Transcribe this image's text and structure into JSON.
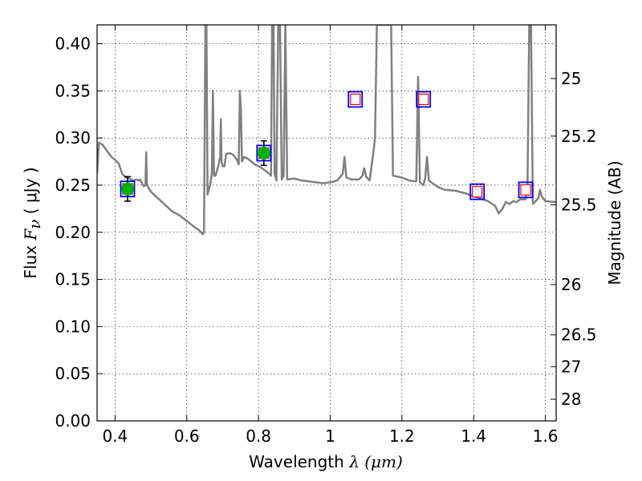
{
  "chart_data": {
    "type": "line",
    "title": "",
    "xlabel": {
      "text": "Wavelength",
      "symbol": "λ",
      "unit": "(μm)"
    },
    "ylabel": {
      "text": "Flux",
      "symbol": "F",
      "subscript": "ν",
      "unit": "( μJy )"
    },
    "y2label": "Magnitude (AB)",
    "xlim": [
      0.35,
      1.63
    ],
    "ylim": [
      0.0,
      0.42
    ],
    "grid": true,
    "legend": "none",
    "xticks": [
      {
        "v": 0.4,
        "label": "0.4"
      },
      {
        "v": 0.6,
        "label": "0.6"
      },
      {
        "v": 0.8,
        "label": "0.8"
      },
      {
        "v": 1.0,
        "label": "1"
      },
      {
        "v": 1.2,
        "label": "1.2"
      },
      {
        "v": 1.4,
        "label": "1.4"
      },
      {
        "v": 1.6,
        "label": "1.6"
      }
    ],
    "yticks": [
      {
        "v": 0.0,
        "label": "0.00"
      },
      {
        "v": 0.05,
        "label": "0.05"
      },
      {
        "v": 0.1,
        "label": "0.10"
      },
      {
        "v": 0.15,
        "label": "0.15"
      },
      {
        "v": 0.2,
        "label": "0.20"
      },
      {
        "v": 0.25,
        "label": "0.25"
      },
      {
        "v": 0.3,
        "label": "0.30"
      },
      {
        "v": 0.35,
        "label": "0.35"
      },
      {
        "v": 0.4,
        "label": "0.40"
      }
    ],
    "y2ticks": [
      {
        "mag": 25,
        "label": "25"
      },
      {
        "mag": 25.2,
        "label": "25.2"
      },
      {
        "mag": 25.5,
        "label": "25.5"
      },
      {
        "mag": 26,
        "label": "26"
      },
      {
        "mag": 26.5,
        "label": "26.5"
      },
      {
        "mag": 27,
        "label": "27"
      },
      {
        "mag": 28,
        "label": "28"
      }
    ],
    "colors": {
      "spectrum": "#808080",
      "observed_marker": "#00b000",
      "model_box": "#0000ff",
      "model_inner": "#ff0000",
      "errorbar": "#000000"
    },
    "spectrum": [
      [
        0.35,
        0.262
      ],
      [
        0.355,
        0.295
      ],
      [
        0.365,
        0.293
      ],
      [
        0.38,
        0.285
      ],
      [
        0.39,
        0.28
      ],
      [
        0.4,
        0.277
      ],
      [
        0.41,
        0.273
      ],
      [
        0.42,
        0.262
      ],
      [
        0.43,
        0.258
      ],
      [
        0.44,
        0.257
      ],
      [
        0.45,
        0.255
      ],
      [
        0.46,
        0.256
      ],
      [
        0.465,
        0.255
      ],
      [
        0.47,
        0.256
      ],
      [
        0.475,
        0.252
      ],
      [
        0.48,
        0.249
      ],
      [
        0.485,
        0.25
      ],
      [
        0.487,
        0.285
      ],
      [
        0.489,
        0.25
      ],
      [
        0.5,
        0.243
      ],
      [
        0.52,
        0.236
      ],
      [
        0.54,
        0.229
      ],
      [
        0.56,
        0.222
      ],
      [
        0.58,
        0.218
      ],
      [
        0.6,
        0.212
      ],
      [
        0.62,
        0.206
      ],
      [
        0.635,
        0.202
      ],
      [
        0.645,
        0.198
      ],
      [
        0.648,
        0.2
      ],
      [
        0.652,
        0.42
      ],
      [
        0.655,
        0.42
      ],
      [
        0.658,
        0.24
      ],
      [
        0.665,
        0.25
      ],
      [
        0.67,
        0.262
      ],
      [
        0.673,
        0.35
      ],
      [
        0.676,
        0.26
      ],
      [
        0.68,
        0.26
      ],
      [
        0.688,
        0.27
      ],
      [
        0.693,
        0.28
      ],
      [
        0.695,
        0.32
      ],
      [
        0.697,
        0.275
      ],
      [
        0.7,
        0.27
      ],
      [
        0.705,
        0.27
      ],
      [
        0.71,
        0.283
      ],
      [
        0.72,
        0.284
      ],
      [
        0.73,
        0.282
      ],
      [
        0.74,
        0.277
      ],
      [
        0.745,
        0.272
      ],
      [
        0.748,
        0.35
      ],
      [
        0.751,
        0.33
      ],
      [
        0.754,
        0.275
      ],
      [
        0.76,
        0.28
      ],
      [
        0.77,
        0.278
      ],
      [
        0.78,
        0.275
      ],
      [
        0.79,
        0.272
      ],
      [
        0.8,
        0.27
      ],
      [
        0.81,
        0.268
      ],
      [
        0.82,
        0.265
      ],
      [
        0.83,
        0.262
      ],
      [
        0.835,
        0.26
      ],
      [
        0.838,
        0.42
      ],
      [
        0.842,
        0.42
      ],
      [
        0.845,
        0.262
      ],
      [
        0.85,
        0.255
      ],
      [
        0.855,
        0.42
      ],
      [
        0.86,
        0.42
      ],
      [
        0.865,
        0.256
      ],
      [
        0.87,
        0.26
      ],
      [
        0.875,
        0.42
      ],
      [
        0.88,
        0.256
      ],
      [
        0.9,
        0.257
      ],
      [
        0.92,
        0.255
      ],
      [
        0.94,
        0.254
      ],
      [
        0.96,
        0.253
      ],
      [
        0.98,
        0.252
      ],
      [
        1.0,
        0.253
      ],
      [
        1.02,
        0.255
      ],
      [
        1.035,
        0.262
      ],
      [
        1.04,
        0.28
      ],
      [
        1.045,
        0.258
      ],
      [
        1.06,
        0.256
      ],
      [
        1.08,
        0.256
      ],
      [
        1.09,
        0.26
      ],
      [
        1.095,
        0.268
      ],
      [
        1.1,
        0.259
      ],
      [
        1.11,
        0.255
      ],
      [
        1.12,
        0.283
      ],
      [
        1.125,
        0.3
      ],
      [
        1.13,
        0.42
      ],
      [
        1.17,
        0.42
      ],
      [
        1.175,
        0.26
      ],
      [
        1.2,
        0.258
      ],
      [
        1.22,
        0.255
      ],
      [
        1.24,
        0.254
      ],
      [
        1.245,
        0.365
      ],
      [
        1.25,
        0.253
      ],
      [
        1.26,
        0.25
      ],
      [
        1.265,
        0.258
      ],
      [
        1.27,
        0.28
      ],
      [
        1.275,
        0.255
      ],
      [
        1.3,
        0.248
      ],
      [
        1.32,
        0.245
      ],
      [
        1.35,
        0.244
      ],
      [
        1.38,
        0.241
      ],
      [
        1.4,
        0.238
      ],
      [
        1.42,
        0.236
      ],
      [
        1.44,
        0.233
      ],
      [
        1.46,
        0.228
      ],
      [
        1.47,
        0.22
      ],
      [
        1.48,
        0.225
      ],
      [
        1.49,
        0.232
      ],
      [
        1.5,
        0.23
      ],
      [
        1.51,
        0.233
      ],
      [
        1.52,
        0.232
      ],
      [
        1.53,
        0.235
      ],
      [
        1.545,
        0.235
      ],
      [
        1.55,
        0.25
      ],
      [
        1.555,
        0.42
      ],
      [
        1.56,
        0.42
      ],
      [
        1.565,
        0.23
      ],
      [
        1.57,
        0.232
      ],
      [
        1.58,
        0.236
      ],
      [
        1.585,
        0.245
      ],
      [
        1.59,
        0.238
      ],
      [
        1.6,
        0.233
      ],
      [
        1.63,
        0.232
      ]
    ],
    "observed": [
      {
        "x": 0.435,
        "y": 0.246,
        "yerr": 0.013
      },
      {
        "x": 0.815,
        "y": 0.284,
        "yerr": 0.013
      }
    ],
    "model": [
      {
        "x": 0.435,
        "y": 0.246
      },
      {
        "x": 0.815,
        "y": 0.284
      },
      {
        "x": 1.07,
        "y": 0.341
      },
      {
        "x": 1.26,
        "y": 0.341
      },
      {
        "x": 1.41,
        "y": 0.243
      },
      {
        "x": 1.545,
        "y": 0.245
      }
    ]
  }
}
